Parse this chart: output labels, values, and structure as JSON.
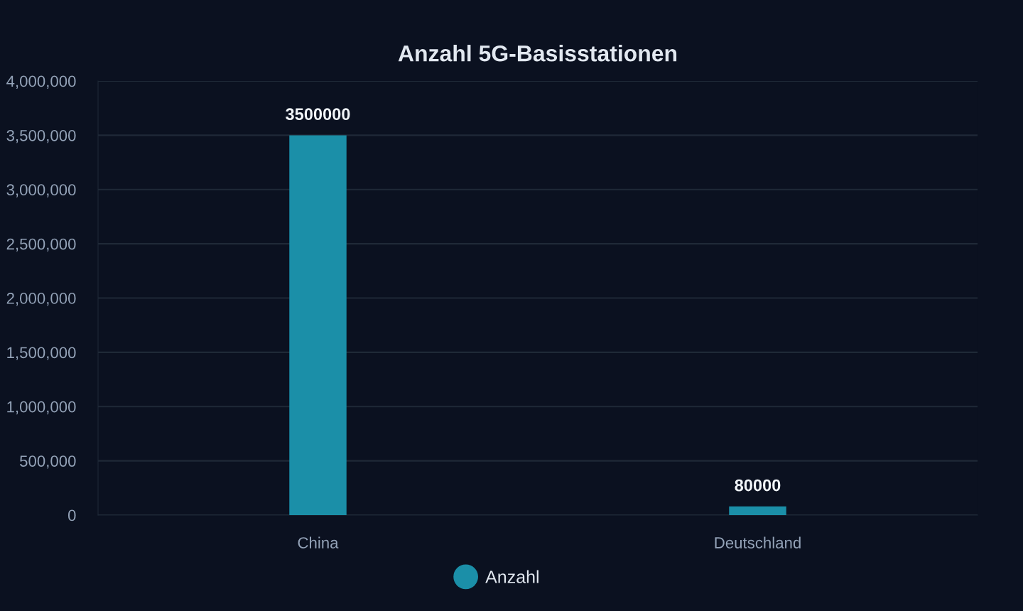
{
  "chart_data": {
    "type": "bar",
    "title": "Anzahl 5G-Basisstationen",
    "categories": [
      "China",
      "Deutschland"
    ],
    "series": [
      {
        "name": "Anzahl",
        "color": "#1b8fa8",
        "values": [
          3500000,
          80000
        ]
      }
    ],
    "ylim": [
      0,
      4000000
    ],
    "yticks": [
      {
        "value": 0,
        "label": "0"
      },
      {
        "value": 500000,
        "label": "500,000"
      },
      {
        "value": 1000000,
        "label": "1,000,000"
      },
      {
        "value": 1500000,
        "label": "1,500,000"
      },
      {
        "value": 2000000,
        "label": "2,000,000"
      },
      {
        "value": 2500000,
        "label": "2,500,000"
      },
      {
        "value": 3000000,
        "label": "3,000,000"
      },
      {
        "value": 3500000,
        "label": "3,500,000"
      },
      {
        "value": 4000000,
        "label": "4,000,000"
      }
    ],
    "grid": "y",
    "legend": "bottom",
    "data_labels": true,
    "marker": "circle"
  }
}
